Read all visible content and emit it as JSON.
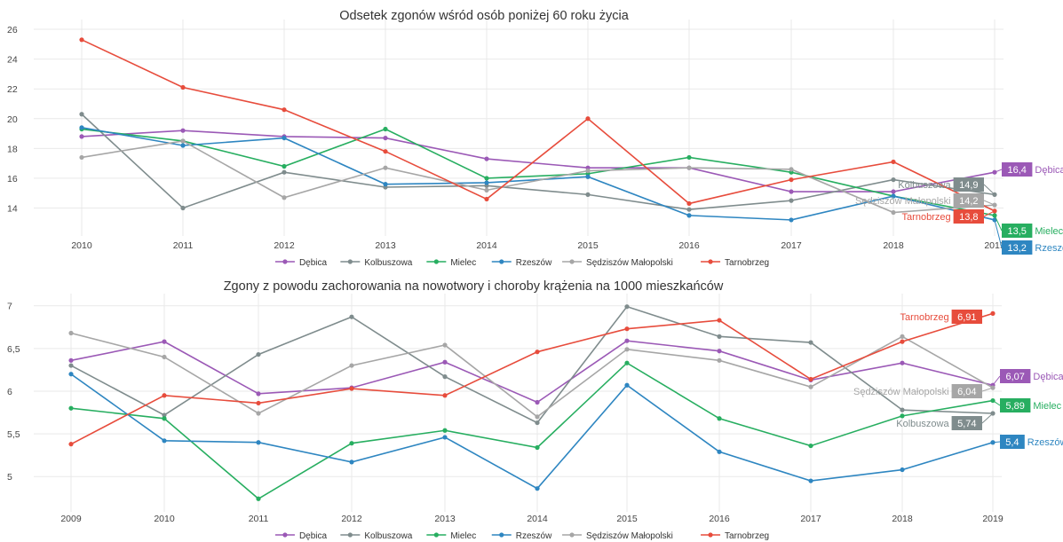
{
  "chart_data": [
    {
      "type": "line",
      "title": "Odsetek zgonów wśród osób poniżej 60 roku życia",
      "xlabel": "",
      "ylabel": "",
      "x": [
        "2010",
        "2011",
        "2012",
        "2013",
        "2014",
        "2015",
        "2016",
        "2017",
        "2018",
        "2019"
      ],
      "x_tick_labels": [
        "2010",
        "2011",
        "2012",
        "2013",
        "2014",
        "2015",
        "2016",
        "2017",
        "2018",
        "2019"
      ],
      "ylim": [
        12.6,
        26.3
      ],
      "y_ticks": [
        14,
        16,
        18,
        20,
        22,
        24,
        26
      ],
      "grid": true,
      "legend_position": "bottom",
      "series": [
        {
          "name": "Dębica",
          "color": "#9b59b6",
          "values": [
            18.8,
            19.2,
            18.8,
            18.7,
            17.3,
            16.7,
            16.7,
            15.1,
            15.1,
            16.4
          ],
          "end_label": "16,4"
        },
        {
          "name": "Kolbuszowa",
          "color": "#7f8c8d",
          "values": [
            20.3,
            14.0,
            16.4,
            15.4,
            15.5,
            14.9,
            13.9,
            14.5,
            15.9,
            14.9
          ],
          "end_label": "14,9"
        },
        {
          "name": "Mielec",
          "color": "#27ae60",
          "values": [
            19.3,
            18.5,
            16.8,
            19.3,
            16.0,
            16.3,
            17.4,
            16.4,
            14.8,
            13.5
          ],
          "end_label": "13,5"
        },
        {
          "name": "Rzeszów",
          "color": "#2e86c1",
          "values": [
            19.4,
            18.2,
            18.7,
            15.6,
            15.7,
            16.1,
            13.5,
            13.2,
            14.8,
            13.2
          ],
          "end_label": "13,2"
        },
        {
          "name": "Sędziszów Małopolski",
          "color": "#a6a6a6",
          "values": [
            17.4,
            18.5,
            14.7,
            16.7,
            15.2,
            16.5,
            16.7,
            16.6,
            13.7,
            14.2
          ],
          "end_label": "14,2"
        },
        {
          "name": "Tarnobrzeg",
          "color": "#e74c3c",
          "values": [
            25.3,
            22.1,
            20.6,
            17.8,
            14.6,
            20.0,
            14.3,
            15.9,
            17.1,
            13.8
          ],
          "end_label": "13,8"
        }
      ]
    },
    {
      "type": "line",
      "title": "Zgony z powodu zachorowania na nowotwory i choroby krążenia na 1000 mieszkańców",
      "xlabel": "",
      "ylabel": "",
      "x": [
        "2009",
        "2010",
        "2011",
        "2012",
        "2013",
        "2014",
        "2015",
        "2016",
        "2017",
        "2018",
        "2019"
      ],
      "x_tick_labels": [
        "2009",
        "2010",
        "2011",
        "2012",
        "2013",
        "2014",
        "2015",
        "2016",
        "2017",
        "2018",
        "2019"
      ],
      "ylim": [
        4.67,
        7.08
      ],
      "y_ticks": [
        5,
        5.5,
        6,
        6.5,
        7
      ],
      "y_tick_labels": [
        "5",
        "5,5",
        "6",
        "6,5",
        "7"
      ],
      "grid": true,
      "legend_position": "bottom",
      "series": [
        {
          "name": "Dębica",
          "color": "#9b59b6",
          "values": [
            6.36,
            6.58,
            5.97,
            6.04,
            6.34,
            5.87,
            6.59,
            6.47,
            6.13,
            6.33,
            6.07
          ],
          "end_label": "6,07"
        },
        {
          "name": "Kolbuszowa",
          "color": "#7f8c8d",
          "values": [
            6.3,
            5.72,
            6.43,
            6.87,
            6.17,
            5.63,
            6.99,
            6.64,
            6.57,
            5.78,
            5.74
          ],
          "end_label": "5,74"
        },
        {
          "name": "Mielec",
          "color": "#27ae60",
          "values": [
            5.8,
            5.68,
            4.74,
            5.39,
            5.54,
            5.34,
            6.33,
            5.68,
            5.36,
            5.71,
            5.89
          ],
          "end_label": "5,89"
        },
        {
          "name": "Rzeszów",
          "color": "#2e86c1",
          "values": [
            6.2,
            5.42,
            5.4,
            5.17,
            5.46,
            4.86,
            6.07,
            5.29,
            4.95,
            5.08,
            5.4
          ],
          "end_label": "5,4"
        },
        {
          "name": "Sędziszów Małopolski",
          "color": "#a6a6a6",
          "values": [
            6.68,
            6.4,
            5.74,
            6.3,
            6.54,
            5.7,
            6.49,
            6.36,
            6.05,
            6.64,
            6.04
          ],
          "end_label": "6,04"
        },
        {
          "name": "Tarnobrzeg",
          "color": "#e74c3c",
          "values": [
            5.38,
            5.95,
            5.86,
            6.03,
            5.95,
            6.46,
            6.73,
            6.83,
            6.14,
            6.58,
            6.91
          ],
          "end_label": "6,91"
        }
      ]
    }
  ]
}
